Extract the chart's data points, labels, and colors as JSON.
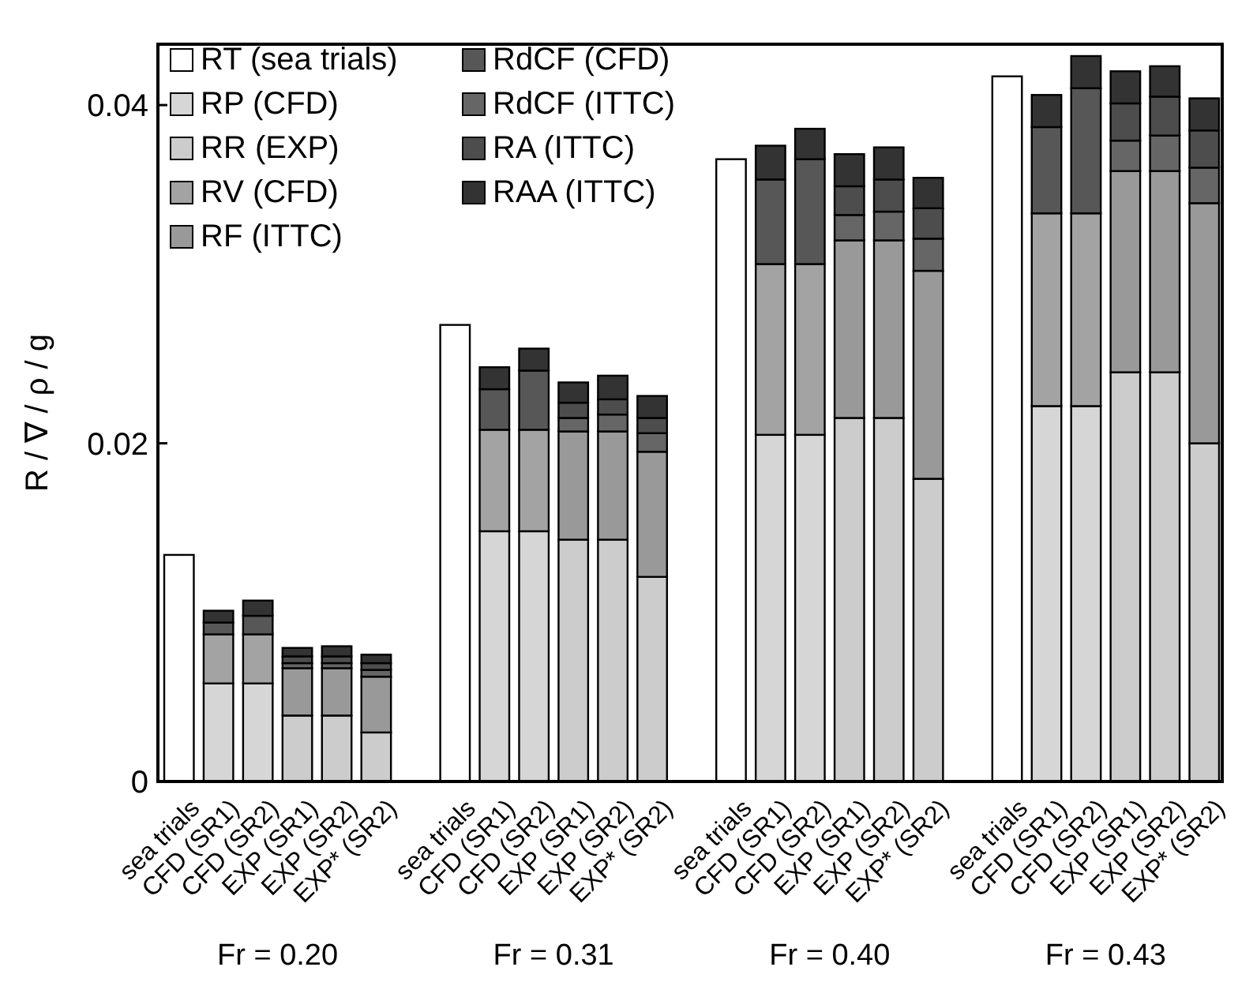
{
  "chart_data": {
    "type": "bar",
    "stacked": true,
    "ylabel": "R / ∇ / ρ / g",
    "categories": [
      "sea trials",
      "CFD (SR1)",
      "CFD (SR2)",
      "EXP (SR1)",
      "EXP (SR2)",
      "EXP* (SR2)",
      null,
      "sea trials",
      "CFD (SR1)",
      "CFD (SR2)",
      "EXP (SR1)",
      "EXP (SR2)",
      "EXP* (SR2)",
      null,
      "sea trials",
      "CFD (SR1)",
      "CFD (SR2)",
      "EXP (SR1)",
      "EXP (SR2)",
      "EXP* (SR2)",
      null,
      "sea trials",
      "CFD (SR1)",
      "CFD (SR2)",
      "EXP (SR1)",
      "EXP (SR2)",
      "EXP* (SR2)"
    ],
    "series": [
      {
        "name": "RT (sea trials)",
        "color": "#ffffff",
        "values": [
          0.0134,
          null,
          null,
          null,
          null,
          null,
          null,
          0.027,
          null,
          null,
          null,
          null,
          null,
          null,
          0.0368,
          null,
          null,
          null,
          null,
          null,
          null,
          0.0417,
          null,
          null,
          null,
          null,
          null
        ]
      },
      {
        "name": "RP (CFD)",
        "color": "#d6d6d6",
        "values": [
          null,
          0.0058,
          0.0058,
          null,
          null,
          null,
          null,
          null,
          0.0148,
          0.0148,
          null,
          null,
          null,
          null,
          null,
          0.0205,
          0.0205,
          null,
          null,
          null,
          null,
          null,
          0.0222,
          0.0222,
          null,
          null,
          null
        ]
      },
      {
        "name": "RR (EXP)",
        "color": "#cccccc",
        "values": [
          null,
          null,
          null,
          0.0039,
          0.0039,
          0.0029,
          null,
          null,
          null,
          null,
          0.0143,
          0.0143,
          0.0121,
          null,
          null,
          null,
          null,
          0.0215,
          0.0215,
          0.0179,
          null,
          null,
          null,
          null,
          0.0242,
          0.0242,
          0.02
        ]
      },
      {
        "name": "RV (CFD)",
        "color": "#a3a3a3",
        "values": [
          null,
          0.0029,
          0.0029,
          null,
          null,
          null,
          null,
          null,
          0.006,
          0.006,
          null,
          null,
          null,
          null,
          null,
          0.0101,
          0.0101,
          null,
          null,
          null,
          null,
          null,
          0.0114,
          0.0114,
          null,
          null,
          null
        ]
      },
      {
        "name": "RF (ITTC)",
        "color": "#999999",
        "values": [
          null,
          null,
          null,
          0.0028,
          0.0028,
          0.0033,
          null,
          null,
          null,
          null,
          0.0064,
          0.0064,
          0.0074,
          null,
          null,
          null,
          null,
          0.0105,
          0.0105,
          0.0123,
          null,
          null,
          null,
          null,
          0.0119,
          0.0119,
          0.0142
        ]
      },
      {
        "name": "RdCF (CFD)",
        "color": "#575757",
        "values": [
          null,
          0.0007,
          0.0011,
          null,
          null,
          null,
          null,
          null,
          0.0024,
          0.0035,
          null,
          null,
          null,
          null,
          null,
          0.005,
          0.0062,
          null,
          null,
          null,
          null,
          null,
          0.0051,
          0.0074,
          null,
          null,
          null
        ]
      },
      {
        "name": "RdCF (ITTC)",
        "color": "#666666",
        "values": [
          null,
          null,
          null,
          0.0003,
          0.0003,
          0.0004,
          null,
          null,
          null,
          null,
          0.0008,
          0.001,
          0.0011,
          null,
          null,
          null,
          null,
          0.0015,
          0.0017,
          0.0019,
          null,
          null,
          null,
          null,
          0.0018,
          0.0021,
          0.0021
        ]
      },
      {
        "name": "RA (ITTC)",
        "color": "#4d4d4d",
        "values": [
          null,
          null,
          null,
          0.0004,
          0.0004,
          0.0004,
          null,
          null,
          null,
          null,
          0.0009,
          0.0009,
          0.0009,
          null,
          null,
          null,
          null,
          0.0017,
          0.0019,
          0.0018,
          null,
          null,
          null,
          null,
          0.0022,
          0.0023,
          0.0022
        ]
      },
      {
        "name": "RAA (ITTC)",
        "color": "#333333",
        "values": [
          null,
          0.0007,
          0.0009,
          0.0005,
          0.0006,
          0.0005,
          null,
          null,
          0.0013,
          0.0013,
          0.0012,
          0.0014,
          0.0013,
          null,
          null,
          0.002,
          0.0018,
          0.0019,
          0.0019,
          0.0018,
          null,
          null,
          0.0019,
          0.0019,
          0.0019,
          0.0018,
          0.0019
        ]
      }
    ],
    "ylim": [
      0,
      0.0436
    ],
    "yticks": [
      0,
      0.02,
      0.04
    ],
    "grid": false,
    "legend": "top left",
    "annotations": [
      "Fr = 0.20",
      "Fr = 0.31",
      "Fr = 0.40",
      "Fr = 0.43"
    ]
  }
}
